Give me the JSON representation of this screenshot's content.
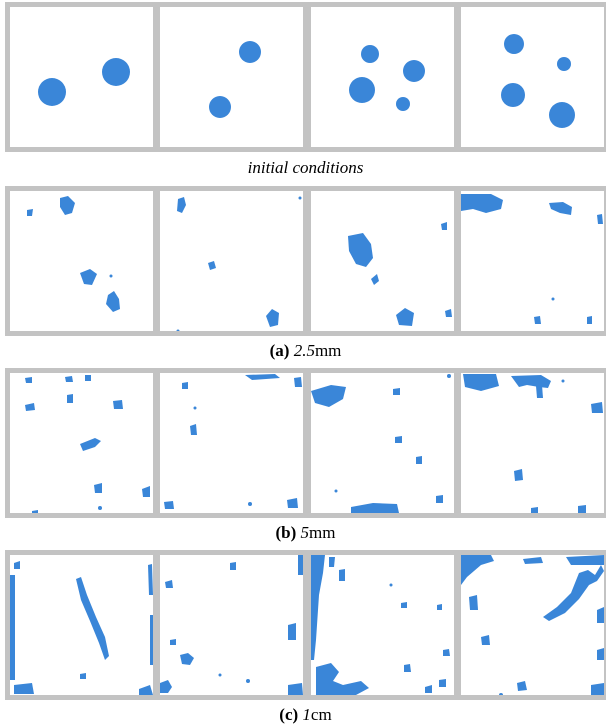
{
  "colors": {
    "droplet": "#3a86d8",
    "frame": "#c3c3c3",
    "background": "#ffffff"
  },
  "figure": {
    "rows": [
      {
        "caption_label": "",
        "caption_value_italic": "initial conditions",
        "caption_unit": ""
      },
      {
        "caption_label": "(a)",
        "caption_value_italic": "2.5",
        "caption_unit": "mm"
      },
      {
        "caption_label": "(b)",
        "caption_value_italic": "5",
        "caption_unit": "mm"
      },
      {
        "caption_label": "(c)",
        "caption_value_italic": "1",
        "caption_unit": "cm"
      }
    ]
  }
}
